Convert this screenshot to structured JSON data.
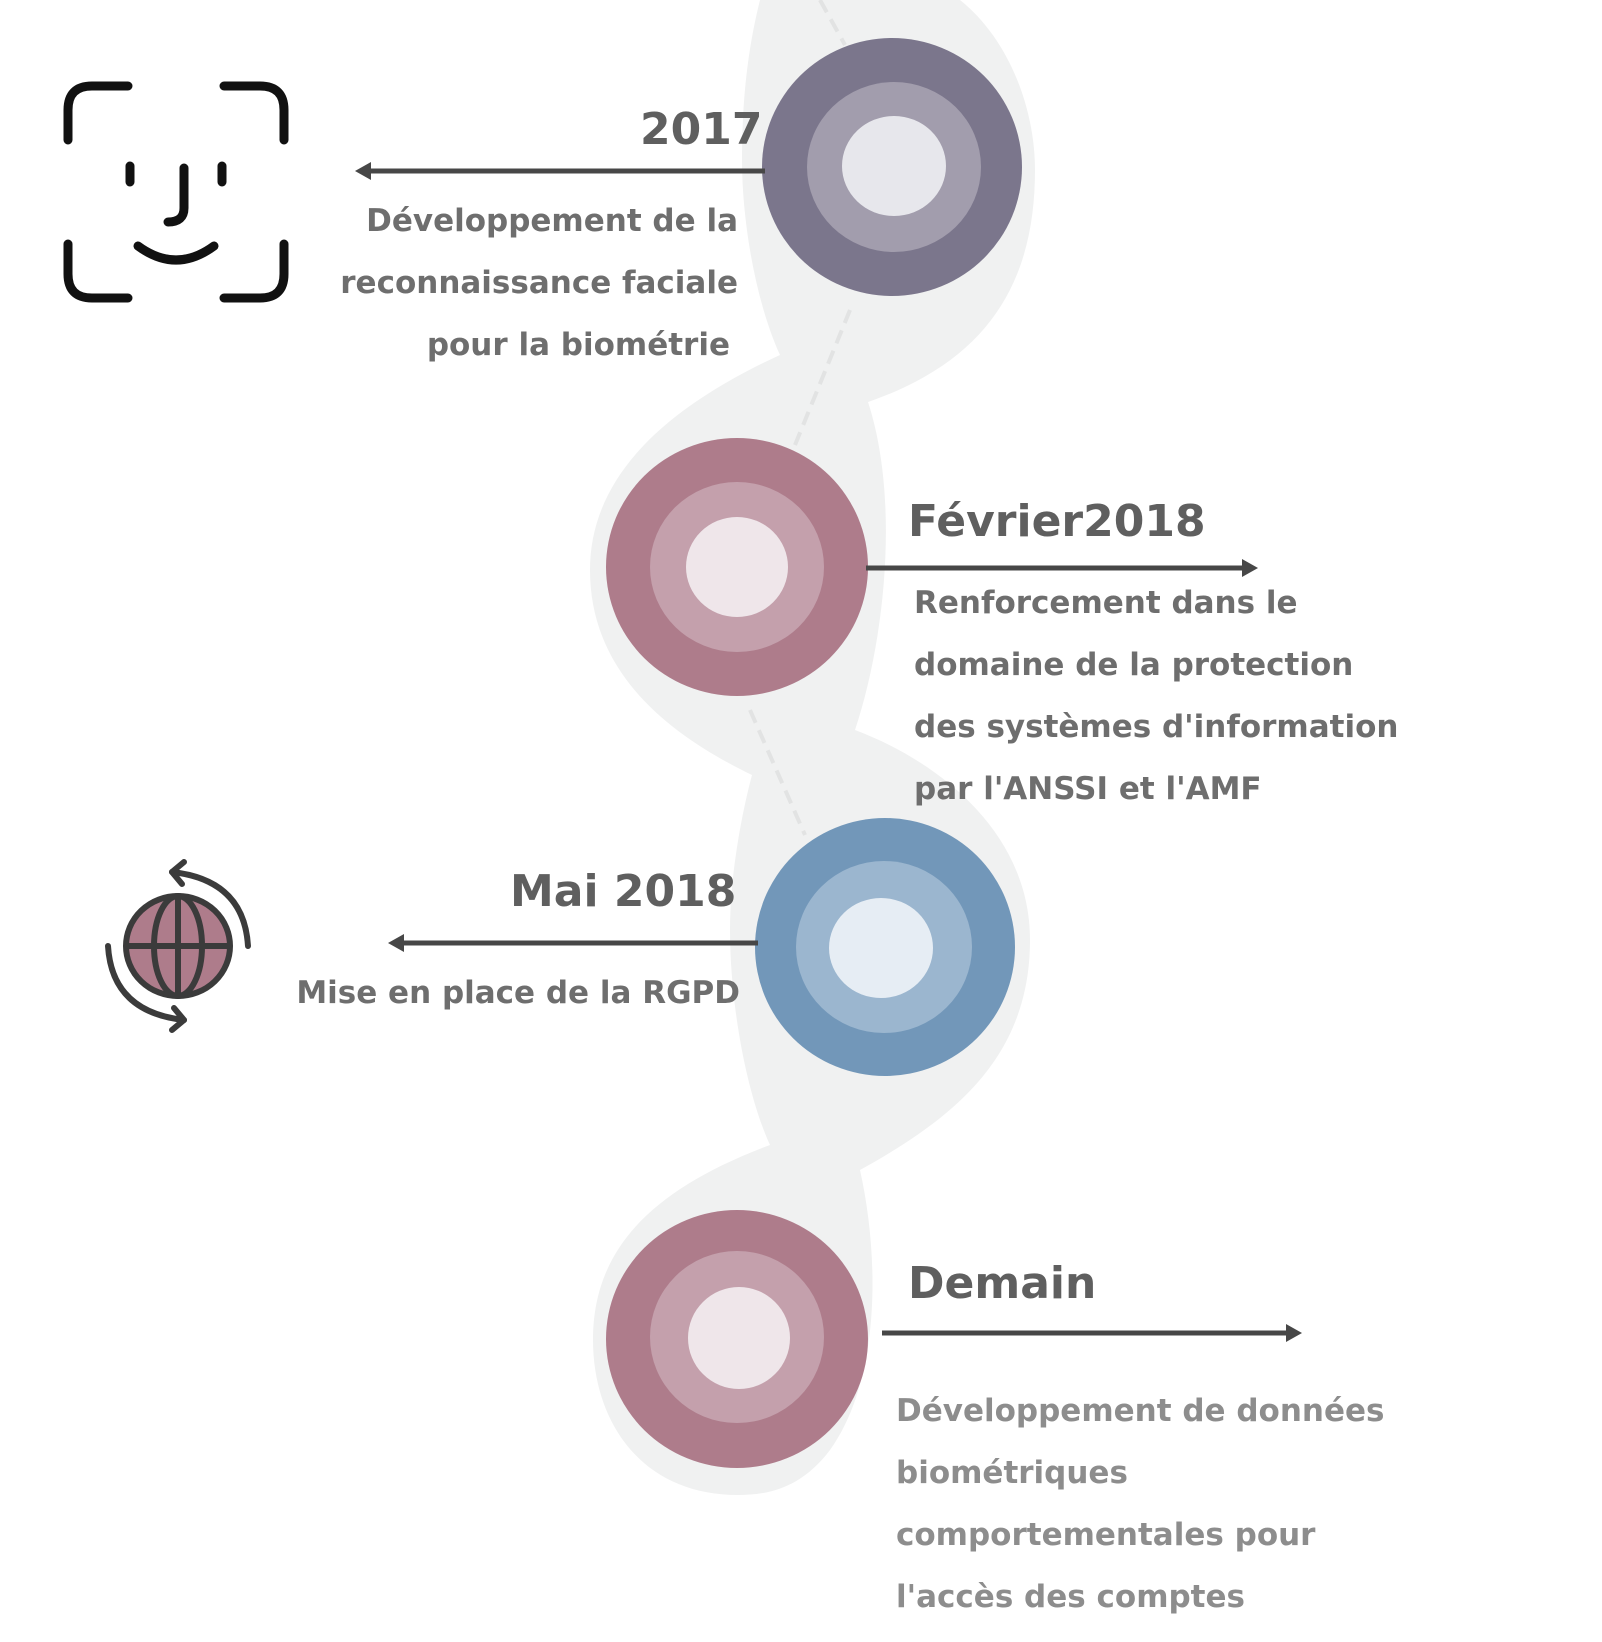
{
  "milestones": [
    {
      "year": "2017",
      "lines": [
        "Développement de la",
        "reconnaissance faciale",
        "pour la biométrie"
      ],
      "color": "#7b768c",
      "mid": "#a29dad",
      "inner": "#e7e7ec"
    },
    {
      "year": "Février2018",
      "lines": [
        "Renforcement dans le",
        "domaine de la protection",
        "des systèmes d'information",
        "par l'ANSSI et l'AMF"
      ],
      "color": "#ae7c8b",
      "mid": "#c4a0ac",
      "inner": "#efe6ea"
    },
    {
      "year": "Mai 2018",
      "lines": [
        "Mise en place de la RGPD"
      ],
      "color": "#7297b9",
      "mid": "#9bb6cf",
      "inner": "#e6edf4"
    },
    {
      "year": "Demain",
      "lines": [
        "Développement  de données",
        "biométriques",
        "comportementales pour",
        "l'accès des comptes"
      ],
      "color": "#ae7c8b",
      "mid": "#c4a0ac",
      "inner": "#efe6ea"
    }
  ],
  "icons": {
    "face": "face-id-icon",
    "globe": "globe-sync-icon"
  },
  "colors": {
    "arrow": "#474747",
    "path": "#f0f1f1",
    "globe_fill": "#ae7c8b",
    "icon_stroke": "#3b3b3b"
  }
}
